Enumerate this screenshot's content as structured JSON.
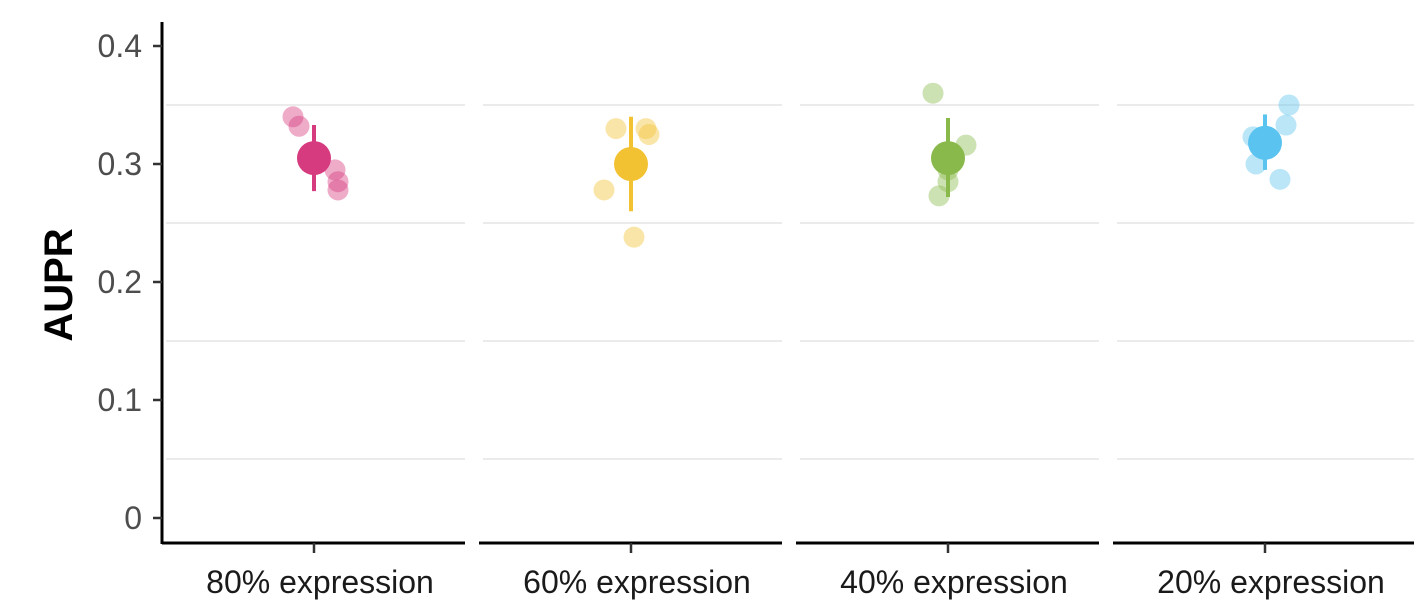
{
  "chart_data": {
    "type": "scatter",
    "title": "",
    "xlabel": "",
    "ylabel": "AUPR",
    "ylim": [
      0,
      0.4
    ],
    "yticks": [
      0,
      0.1,
      0.2,
      0.3,
      0.4
    ],
    "ytick_labels": [
      "0",
      "0.1",
      "0.2",
      "0.3",
      "0.4"
    ],
    "grid": "horizontal minor lines",
    "legend": "none",
    "categories": [
      "80% expression",
      "60% expression",
      "40% expression",
      "20% expression"
    ],
    "colors": [
      "#d63a7f",
      "#f2c232",
      "#88b94a",
      "#5bc3ef"
    ],
    "groups": [
      {
        "category": "80% expression",
        "mean": 0.305,
        "error_low": 0.277,
        "error_high": 0.333,
        "points": [
          {
            "jitter": -0.07,
            "y": 0.34
          },
          {
            "jitter": -0.05,
            "y": 0.332
          },
          {
            "jitter": 0.07,
            "y": 0.295
          },
          {
            "jitter": 0.08,
            "y": 0.285
          },
          {
            "jitter": 0.08,
            "y": 0.278
          }
        ]
      },
      {
        "category": "60% expression",
        "mean": 0.3,
        "error_low": 0.26,
        "error_high": 0.34,
        "points": [
          {
            "jitter": -0.05,
            "y": 0.33
          },
          {
            "jitter": 0.05,
            "y": 0.33
          },
          {
            "jitter": 0.06,
            "y": 0.325
          },
          {
            "jitter": -0.09,
            "y": 0.278
          },
          {
            "jitter": 0.01,
            "y": 0.238
          }
        ]
      },
      {
        "category": "40% expression",
        "mean": 0.305,
        "error_low": 0.272,
        "error_high": 0.339,
        "points": [
          {
            "jitter": -0.05,
            "y": 0.36
          },
          {
            "jitter": 0.06,
            "y": 0.316
          },
          {
            "jitter": 0.0,
            "y": 0.295
          },
          {
            "jitter": 0.0,
            "y": 0.285
          },
          {
            "jitter": -0.03,
            "y": 0.273
          }
        ]
      },
      {
        "category": "20% expression",
        "mean": 0.318,
        "error_low": 0.295,
        "error_high": 0.342,
        "points": [
          {
            "jitter": 0.08,
            "y": 0.35
          },
          {
            "jitter": 0.07,
            "y": 0.333
          },
          {
            "jitter": -0.04,
            "y": 0.323
          },
          {
            "jitter": -0.03,
            "y": 0.3
          },
          {
            "jitter": 0.05,
            "y": 0.287
          }
        ]
      }
    ]
  }
}
